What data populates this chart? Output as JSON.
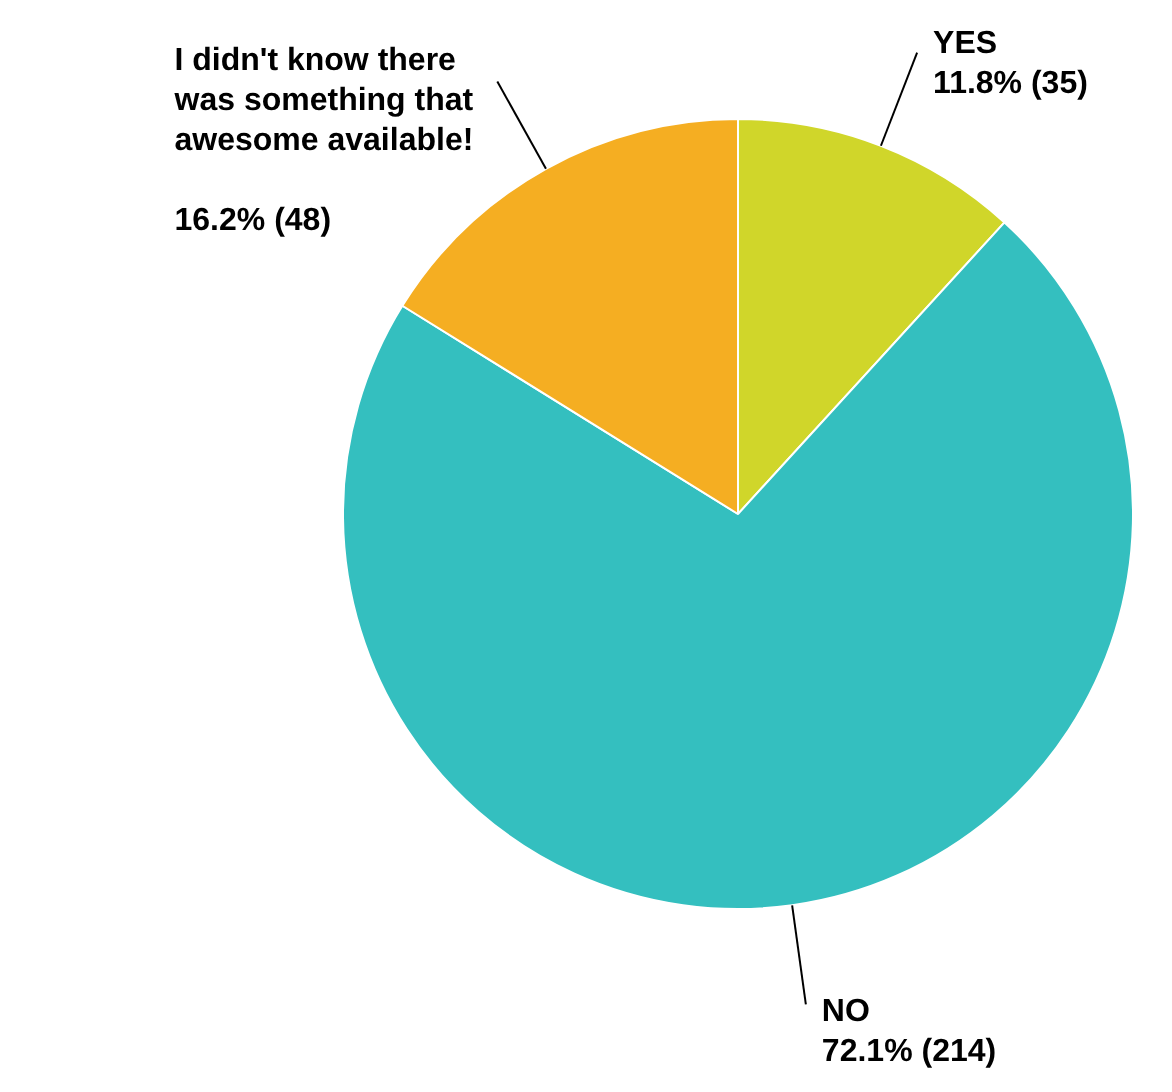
{
  "chart_data": {
    "type": "pie",
    "categories": [
      "YES",
      "NO",
      "I didn't know there was something that awesome available!"
    ],
    "values": [
      35,
      214,
      48
    ],
    "colors": [
      "#d0d62a",
      "#34bfbf",
      "#f5ae22"
    ],
    "value_labels": [
      "11.8% (35)",
      "72.1% (214)",
      "16.2% (48)"
    ]
  }
}
